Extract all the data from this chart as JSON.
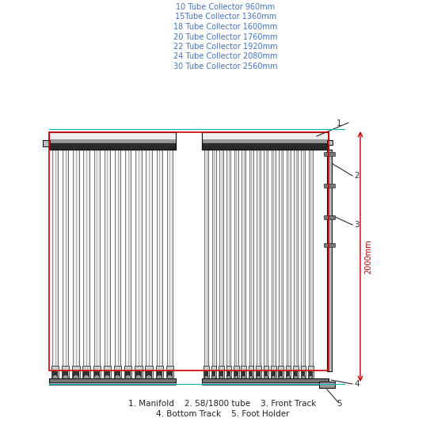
{
  "title_lines": [
    "10 Tube Collector 960mm",
    "15Tube Collector 1360mm",
    "18 Tube Collector 1600mm",
    "20 Tube Collector 1760mm",
    "22 Tube Collector 1920mm",
    "24 Tube Collector 2080mm",
    "30 Tube Collector 2560mm"
  ],
  "title_color": "#4472C4",
  "footer_line1": "1. Manifold    2. 58/1800 tube    3. Front Track",
  "footer_line2": "4. Bottom Track    5. Foot Holder",
  "dimension_label": "2000mm",
  "red_color": "#CC0000",
  "cyan_color": "#00BBBB",
  "black_color": "#111111",
  "gray_light": "#DDDDDD",
  "gray_mid": "#888888",
  "gray_dark": "#444444",
  "bg_color": "#FFFFFF",
  "label_color": "#333333"
}
